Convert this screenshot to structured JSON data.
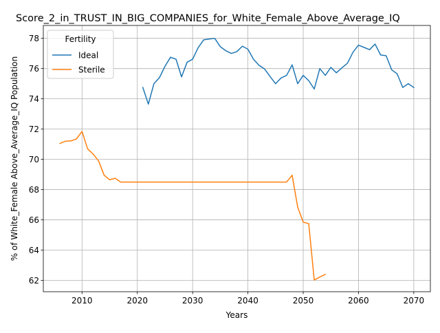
{
  "chart_data": {
    "type": "line",
    "title": "Score_2_in_TRUST_IN_BIG_COMPANIES_for_White_Female_Above_Average_IQ",
    "xlabel": "Years",
    "ylabel": "% of White_Female Above_Average_IQ Population",
    "xlim": [
      2003,
      2073
    ],
    "ylim": [
      61.25,
      78.85
    ],
    "xticks": [
      2010,
      2020,
      2030,
      2040,
      2050,
      2060,
      2070
    ],
    "yticks": [
      62,
      64,
      66,
      68,
      70,
      72,
      74,
      76,
      78
    ],
    "grid": true,
    "legend": {
      "title": "Fertility",
      "placement": "top-left"
    },
    "series": [
      {
        "name": "Ideal",
        "color": "#1f77b4",
        "x": [
          2021,
          2022,
          2023,
          2024,
          2025,
          2026,
          2027,
          2028,
          2029,
          2030,
          2031,
          2032,
          2033,
          2034,
          2035,
          2036,
          2037,
          2038,
          2039,
          2040,
          2041,
          2042,
          2043,
          2044,
          2045,
          2046,
          2047,
          2048,
          2049,
          2050,
          2051,
          2052,
          2053,
          2054,
          2055,
          2056,
          2057,
          2058,
          2059,
          2060,
          2061,
          2062,
          2063,
          2064,
          2065,
          2066,
          2067,
          2068,
          2069,
          2070
        ],
        "values": [
          74.75,
          73.65,
          75.0,
          75.4,
          76.15,
          76.75,
          76.62,
          75.45,
          76.42,
          76.62,
          77.38,
          77.9,
          77.95,
          78.0,
          77.45,
          77.18,
          77.0,
          77.12,
          77.48,
          77.28,
          76.62,
          76.22,
          75.98,
          75.48,
          75.0,
          75.38,
          75.55,
          76.25,
          75.0,
          75.55,
          75.2,
          74.65,
          76.0,
          75.55,
          76.08,
          75.72,
          76.05,
          76.35,
          77.08,
          77.55,
          77.4,
          77.25,
          77.62,
          76.9,
          76.85,
          75.92,
          75.65,
          74.75,
          75.0,
          74.75
        ]
      },
      {
        "name": "Sterile",
        "color": "#ff7f0e",
        "x": [
          2006,
          2007,
          2008,
          2009,
          2010,
          2011,
          2012,
          2013,
          2014,
          2015,
          2016,
          2017,
          2018,
          2019,
          2020,
          2021,
          2022,
          2023,
          2024,
          2025,
          2026,
          2027,
          2028,
          2029,
          2030,
          2031,
          2032,
          2033,
          2034,
          2035,
          2036,
          2037,
          2038,
          2039,
          2040,
          2041,
          2042,
          2043,
          2044,
          2045,
          2046,
          2047,
          2048,
          2049,
          2050,
          2051,
          2052,
          2053,
          2054
        ],
        "values": [
          71.05,
          71.2,
          71.22,
          71.35,
          71.85,
          70.7,
          70.35,
          69.9,
          68.95,
          68.65,
          68.75,
          68.5,
          68.5,
          68.5,
          68.5,
          68.5,
          68.5,
          68.5,
          68.5,
          68.5,
          68.5,
          68.5,
          68.5,
          68.5,
          68.5,
          68.5,
          68.5,
          68.5,
          68.5,
          68.5,
          68.5,
          68.5,
          68.5,
          68.5,
          68.5,
          68.5,
          68.5,
          68.5,
          68.5,
          68.5,
          68.5,
          68.5,
          68.95,
          66.85,
          65.85,
          65.75,
          62.02,
          62.22,
          62.4
        ]
      }
    ]
  }
}
